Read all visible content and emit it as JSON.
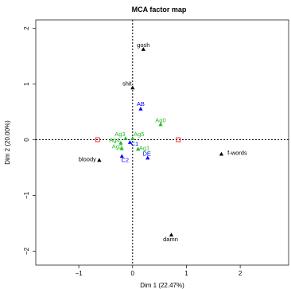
{
  "chart_data": {
    "type": "scatter",
    "title": "MCA factor map",
    "xlabel": "Dim 1 (22.47%)",
    "ylabel": "Dim 2 (20.00%)",
    "xlim": [
      -1.8,
      2.9
    ],
    "ylim": [
      -2.25,
      2.15
    ],
    "xticks": [
      -1,
      0,
      1,
      2
    ],
    "yticks": [
      -2,
      -1,
      0,
      1,
      2
    ],
    "grid": false,
    "reference_lines": {
      "x": 0,
      "y": 0
    },
    "colors": {
      "black": "#000000",
      "blue": "#0000ff",
      "green": "#22bb22",
      "red": "#ff0000"
    },
    "points": [
      {
        "label": "gosh",
        "x": 0.2,
        "y": 1.62,
        "color": "black",
        "shape": "triangle"
      },
      {
        "label": "shit",
        "x": 0.0,
        "y": 0.93,
        "color": "black",
        "shape": "triangle"
      },
      {
        "label": "AB",
        "x": 0.15,
        "y": 0.55,
        "color": "blue",
        "shape": "triangle"
      },
      {
        "label": "Ag0",
        "x": 0.52,
        "y": 0.27,
        "color": "green",
        "shape": "triangle"
      },
      {
        "label": "Ag3",
        "x": -0.13,
        "y": 0.02,
        "color": "green",
        "shape": "triangle"
      },
      {
        "label": "Ag5",
        "x": 0.0,
        "y": 0.02,
        "color": "green",
        "shape": "triangle"
      },
      {
        "label": "Ag4",
        "x": -0.22,
        "y": -0.06,
        "color": "green",
        "shape": "triangle"
      },
      {
        "label": "C1",
        "x": -0.05,
        "y": -0.05,
        "color": "blue",
        "shape": "triangle"
      },
      {
        "label": "Ag2",
        "x": -0.2,
        "y": -0.16,
        "color": "green",
        "shape": "triangle"
      },
      {
        "label": "Ag1",
        "x": 0.1,
        "y": -0.17,
        "color": "green",
        "shape": "triangle"
      },
      {
        "label": "DE",
        "x": 0.28,
        "y": -0.33,
        "color": "blue",
        "shape": "triangle"
      },
      {
        "label": "C2",
        "x": -0.2,
        "y": -0.3,
        "color": "blue",
        "shape": "triangle"
      },
      {
        "label": "bloody",
        "x": -0.62,
        "y": -0.37,
        "color": "black",
        "shape": "triangle"
      },
      {
        "label": "f-words",
        "x": 1.65,
        "y": -0.26,
        "color": "black",
        "shape": "triangle"
      },
      {
        "label": "damn",
        "x": 0.72,
        "y": -1.71,
        "color": "black",
        "shape": "triangle"
      },
      {
        "label": "",
        "x": -0.65,
        "y": 0.0,
        "color": "red",
        "shape": "square"
      },
      {
        "label": "",
        "x": 0.85,
        "y": 0.0,
        "color": "red",
        "shape": "square"
      }
    ]
  }
}
